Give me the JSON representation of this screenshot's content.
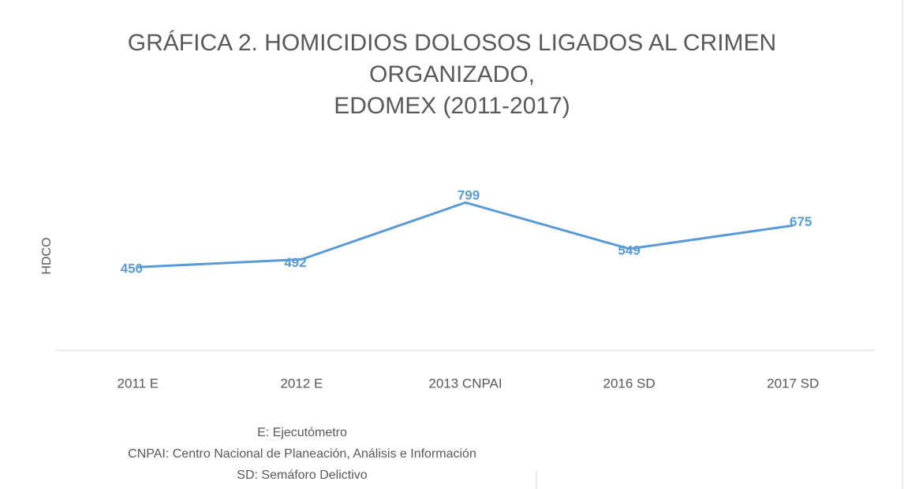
{
  "chart_data": {
    "type": "line",
    "title": [
      "GRÁFICA 2. HOMICIDIOS DOLOSOS LIGADOS AL CRIMEN",
      "ORGANIZADO,",
      "EDOMEX (2011-2017)"
    ],
    "y_label": "HDCO",
    "categories": [
      "2011 E",
      "2012 E",
      "2013 CNPAI",
      "2016 SD",
      "2017 SD"
    ],
    "values": [
      450,
      492,
      799,
      549,
      675
    ],
    "color": "#5b9bd5",
    "ylim": [
      0,
      1000
    ],
    "notes": [
      "E: Ejecutómetro",
      "CNPAI: Centro Nacional de Planeación, Análisis e Información",
      "SD: Semáforo Delictivo"
    ]
  }
}
